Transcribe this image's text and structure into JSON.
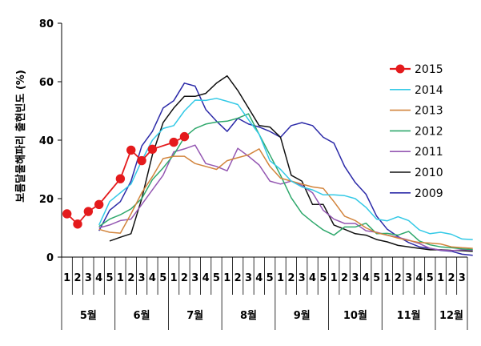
{
  "chart_data": {
    "type": "line",
    "ylabel": "보름달물해파리 출현빈도 (%)",
    "ylim": [
      0,
      80
    ],
    "yticks": [
      "0",
      "20",
      "40",
      "60",
      "80"
    ],
    "week_ticks": [
      "1",
      "2",
      "3",
      "4",
      "5",
      "1",
      "2",
      "3",
      "4",
      "5",
      "1",
      "2",
      "3",
      "4",
      "5",
      "1",
      "2",
      "3",
      "4",
      "5",
      "1",
      "2",
      "3",
      "4",
      "5",
      "1",
      "2",
      "3",
      "4",
      "5",
      "1",
      "2",
      "3",
      "4",
      "5",
      "1",
      "2",
      "3"
    ],
    "months": [
      "5월",
      "6월",
      "7월",
      "8월",
      "9월",
      "10월",
      "11월",
      "12월"
    ],
    "month_week_counts": [
      5,
      5,
      5,
      5,
      5,
      5,
      5,
      3
    ],
    "legend_position": "right",
    "grid": false,
    "series": [
      {
        "name": "2015",
        "color": "#e41a1c",
        "marker": true,
        "start": 0,
        "values": [
          14.8,
          11.3,
          15.6,
          18.0,
          null,
          26.8,
          36.6,
          33.0,
          36.9,
          null,
          39.3,
          41.2
        ]
      },
      {
        "name": "2014",
        "color": "#33c9e6",
        "marker": false,
        "start": 3,
        "values": [
          11,
          19,
          22,
          25,
          33,
          40,
          44,
          45,
          50,
          53.7,
          53.6,
          54.3,
          53.3,
          52.2,
          47,
          42,
          33,
          30,
          26,
          24,
          23,
          21.3,
          21.3,
          21,
          20,
          17,
          13,
          12.4,
          13.8,
          12.5,
          9.3,
          8,
          8.5,
          7.8,
          6.2,
          6
        ]
      },
      {
        "name": "2013",
        "color": "#d2843c",
        "marker": false,
        "start": 3,
        "values": [
          9.5,
          8.5,
          8.2,
          14.8,
          22,
          27.5,
          33.7,
          34.5,
          34.5,
          32,
          31,
          30,
          33,
          34,
          35,
          37,
          31,
          27,
          26,
          25,
          24,
          23.5,
          19,
          14,
          12.5,
          10,
          8.3,
          7.5,
          6.5,
          5.7,
          5,
          4.8,
          4.5,
          3.5,
          3.2,
          3
        ]
      },
      {
        "name": "2012",
        "color": "#2fa86c",
        "marker": false,
        "start": 3,
        "values": [
          10.5,
          13,
          14.5,
          16.5,
          20,
          26.5,
          30.5,
          35,
          41,
          44,
          45.5,
          46.2,
          46.5,
          47.5,
          49,
          42,
          35,
          28,
          20.3,
          15,
          12,
          9.3,
          7.5,
          10.3,
          10.3,
          11.6,
          8,
          8.1,
          7.5,
          8.8,
          5.5,
          4.2,
          3.5,
          3.2,
          2.8,
          2.6
        ]
      },
      {
        "name": "2011",
        "color": "#9457b2",
        "marker": false,
        "start": 3,
        "values": [
          10,
          11,
          12.5,
          13,
          18,
          23,
          28,
          36,
          37,
          38.3,
          32,
          31,
          29.5,
          37.2,
          34.5,
          31.5,
          26,
          25,
          26,
          24.5,
          22,
          16,
          13,
          11.5,
          11.5,
          9,
          8.5,
          7.5,
          6.8,
          5.8,
          4.6,
          3,
          2.4,
          2.2,
          2.5,
          2.4
        ]
      },
      {
        "name": "2010",
        "color": "#111111",
        "marker": false,
        "start": 4,
        "values": [
          5.5,
          6.8,
          8,
          20,
          35,
          46,
          51,
          55,
          55,
          56,
          59.5,
          62,
          57,
          51,
          45,
          44.5,
          41,
          28,
          26,
          18,
          18,
          11,
          9.5,
          8,
          7.5,
          6,
          5.2,
          4,
          3.5,
          3,
          2.5,
          2.5,
          2.3,
          2.2,
          2
        ]
      },
      {
        "name": "2009",
        "color": "#2c2aa8",
        "marker": false,
        "start": 3,
        "values": [
          9,
          16,
          19,
          26,
          38,
          43,
          51,
          53.5,
          59.5,
          58.5,
          50.5,
          46.5,
          43,
          47.5,
          45.5,
          44.5,
          43,
          41,
          45,
          46,
          45,
          41,
          39,
          31,
          25.5,
          21.5,
          14,
          9.5,
          7,
          5,
          3.5,
          3,
          2.3,
          2,
          1,
          0.6
        ]
      }
    ]
  }
}
